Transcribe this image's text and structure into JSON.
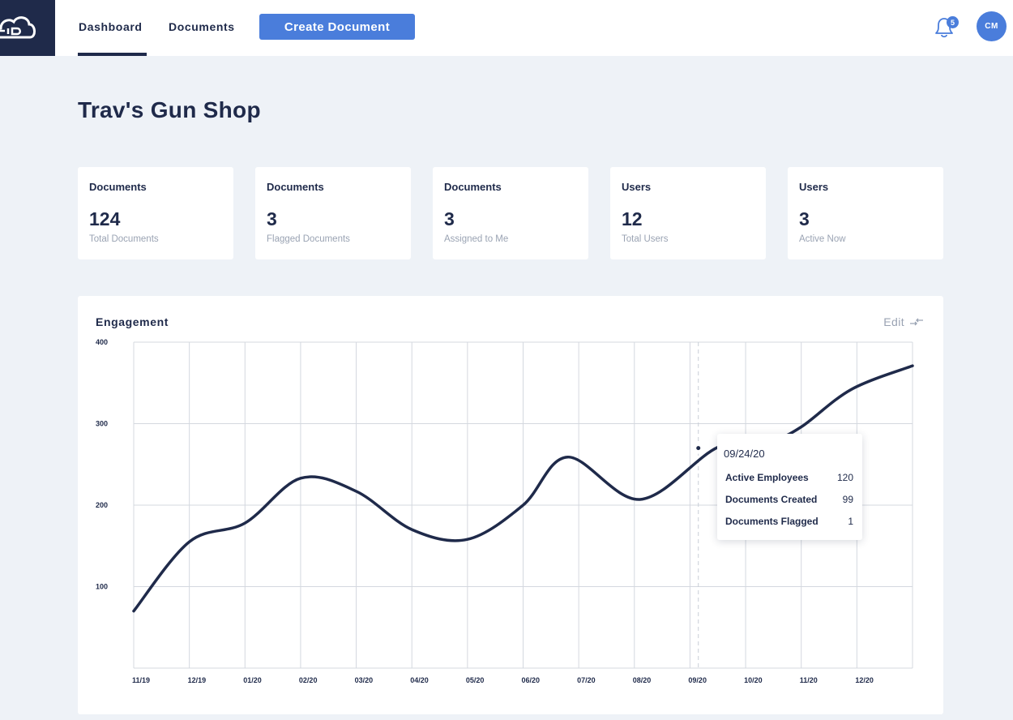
{
  "nav": {
    "tabs": [
      {
        "label": "Dashboard",
        "active": true
      },
      {
        "label": "Documents",
        "active": false
      }
    ],
    "create_button": "Create Document",
    "notification_count": "5",
    "avatar_initials": "CM",
    "accent_color": "#4a7ddb",
    "brand_color": "#1f2a4a"
  },
  "page": {
    "title": "Trav's Gun Shop"
  },
  "stats": [
    {
      "label": "Documents",
      "value": "124",
      "sub": "Total Documents"
    },
    {
      "label": "Documents",
      "value": "3",
      "sub": "Flagged Documents"
    },
    {
      "label": "Documents",
      "value": "3",
      "sub": "Assigned to Me"
    },
    {
      "label": "Users",
      "value": "12",
      "sub": "Total Users"
    },
    {
      "label": "Users",
      "value": "3",
      "sub": "Active Now"
    }
  ],
  "engagement": {
    "title": "Engagement",
    "edit_label": "Edit"
  },
  "tooltip": {
    "date": "09/24/20",
    "rows": [
      {
        "label": "Active Employees",
        "value": "120"
      },
      {
        "label": "Documents Created",
        "value": "99"
      },
      {
        "label": "Documents Flagged",
        "value": "1"
      }
    ]
  },
  "chart_data": {
    "type": "line",
    "title": "Engagement",
    "xlabel": "",
    "ylabel": "",
    "categories": [
      "11/19",
      "12/19",
      "01/20",
      "02/20",
      "03/20",
      "04/20",
      "05/20",
      "06/20",
      "07/20",
      "08/20",
      "09/20",
      "10/20",
      "11/20",
      "12/20"
    ],
    "y_ticks": [
      "400",
      "300",
      "200",
      "100"
    ],
    "ylim": [
      0,
      400
    ],
    "grid": true,
    "series": [
      {
        "color": "#1f2a4a",
        "points": [
          [
            0,
            70
          ],
          [
            1,
            155
          ],
          [
            2,
            178
          ],
          [
            3,
            233
          ],
          [
            4,
            217
          ],
          [
            5,
            170
          ],
          [
            6,
            158
          ],
          [
            7,
            200
          ],
          [
            7.8,
            259
          ],
          [
            9.1,
            207
          ],
          [
            10.5,
            271
          ],
          [
            11.5,
            281
          ],
          [
            12,
            296
          ],
          [
            12.9,
            342
          ],
          [
            14,
            371
          ]
        ]
      }
    ],
    "highlight": {
      "x": 10.15,
      "label": "09/24/20"
    }
  }
}
